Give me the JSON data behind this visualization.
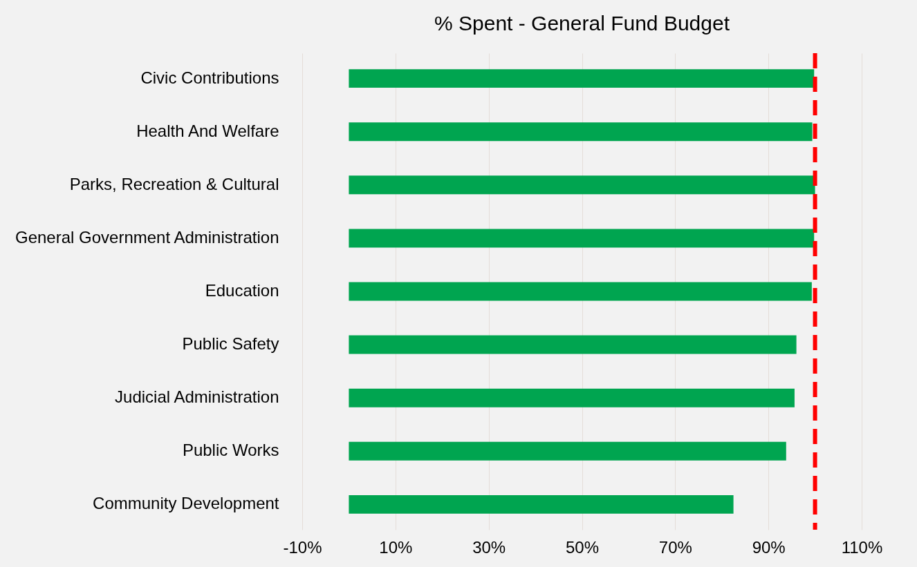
{
  "chart_data": {
    "type": "bar",
    "orientation": "horizontal",
    "title": "% Spent - General Fund Budget",
    "categories": [
      "Civic Contributions",
      "Health And Welfare",
      "Parks, Recreation & Cultural",
      "General Government Administration",
      "Education",
      "Public Safety",
      "Judicial Administration",
      "Public Works",
      "Community Development"
    ],
    "values": [
      99.8,
      99.4,
      100,
      99.8,
      99.3,
      96,
      95.6,
      93.8,
      82.5
    ],
    "color": "#00a550",
    "xlim": [
      -10,
      110
    ],
    "xticks": [
      {
        "value": -10,
        "label": "-10%"
      },
      {
        "value": 10,
        "label": "10%"
      },
      {
        "value": 30,
        "label": "30%"
      },
      {
        "value": 50,
        "label": "50%"
      },
      {
        "value": 70,
        "label": "70%"
      },
      {
        "value": 90,
        "label": "90%"
      },
      {
        "value": 110,
        "label": "110%"
      }
    ],
    "ref_lines": [
      {
        "axis": "x",
        "value": 100,
        "color": "#ff0000",
        "line_style": "dashed"
      }
    ],
    "grid": "x"
  }
}
